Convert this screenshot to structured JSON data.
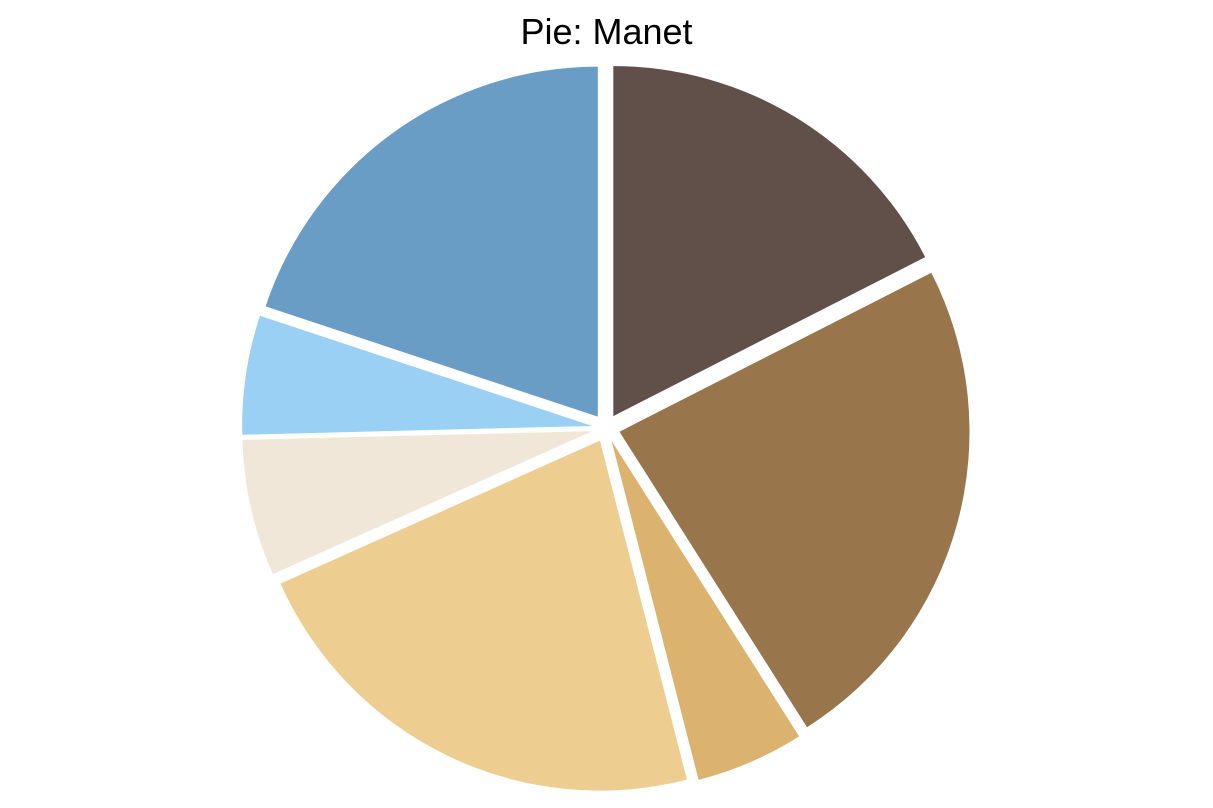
{
  "chart_data": {
    "type": "pie",
    "title": "Pie: Manet",
    "values": [
      17.5,
      23.5,
      5.0,
      22.3,
      6.3,
      5.5,
      19.9
    ],
    "colors": [
      "#61504A",
      "#98754A",
      "#DBB26E",
      "#EECD91",
      "#F1E7D8",
      "#9AD0F4",
      "#699DC6"
    ],
    "start_angle": "top",
    "direction": "clockwise",
    "exploded": true,
    "legend": "none",
    "labels": "none"
  }
}
